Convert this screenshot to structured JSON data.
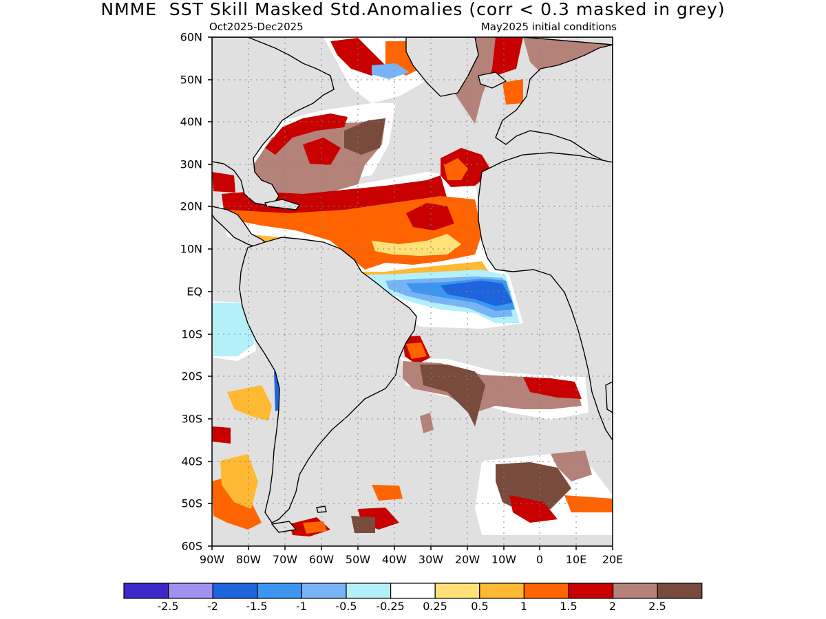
{
  "title": "NMME  SST Skill Masked Std.Anomalies (corr < 0.3 masked in grey)",
  "subtitle_left": "Oct2025-Dec2025",
  "subtitle_right": "May2025 initial conditions",
  "map": {
    "lon_range": [
      -90,
      20
    ],
    "lat_range": [
      -60,
      60
    ],
    "mask_color": "#e0e0e0",
    "coast_color": "#000000",
    "grid": "dotted"
  },
  "lat_labels": [
    "60N",
    "50N",
    "40N",
    "30N",
    "20N",
    "10N",
    "EQ",
    "10S",
    "20S",
    "30S",
    "40S",
    "50S",
    "60S"
  ],
  "lon_labels": [
    "90W",
    "80W",
    "70W",
    "60W",
    "50W",
    "40W",
    "30W",
    "20W",
    "10W",
    "0",
    "10E",
    "20E"
  ],
  "colorbar": {
    "colors": [
      "#3c28c8",
      "#a090f0",
      "#1e64dc",
      "#3c96f0",
      "#78b4f5",
      "#b4f0fa",
      "#ffffff",
      "#ffe178",
      "#ffb932",
      "#ff6400",
      "#c80000",
      "#b48278",
      "#784b3c"
    ],
    "labels": [
      "-2.5",
      "-2",
      "-1.5",
      "-1",
      "-0.5",
      "-0.25",
      "0.25",
      "0.5",
      "1",
      "1.5",
      "2",
      "2.5"
    ]
  }
}
